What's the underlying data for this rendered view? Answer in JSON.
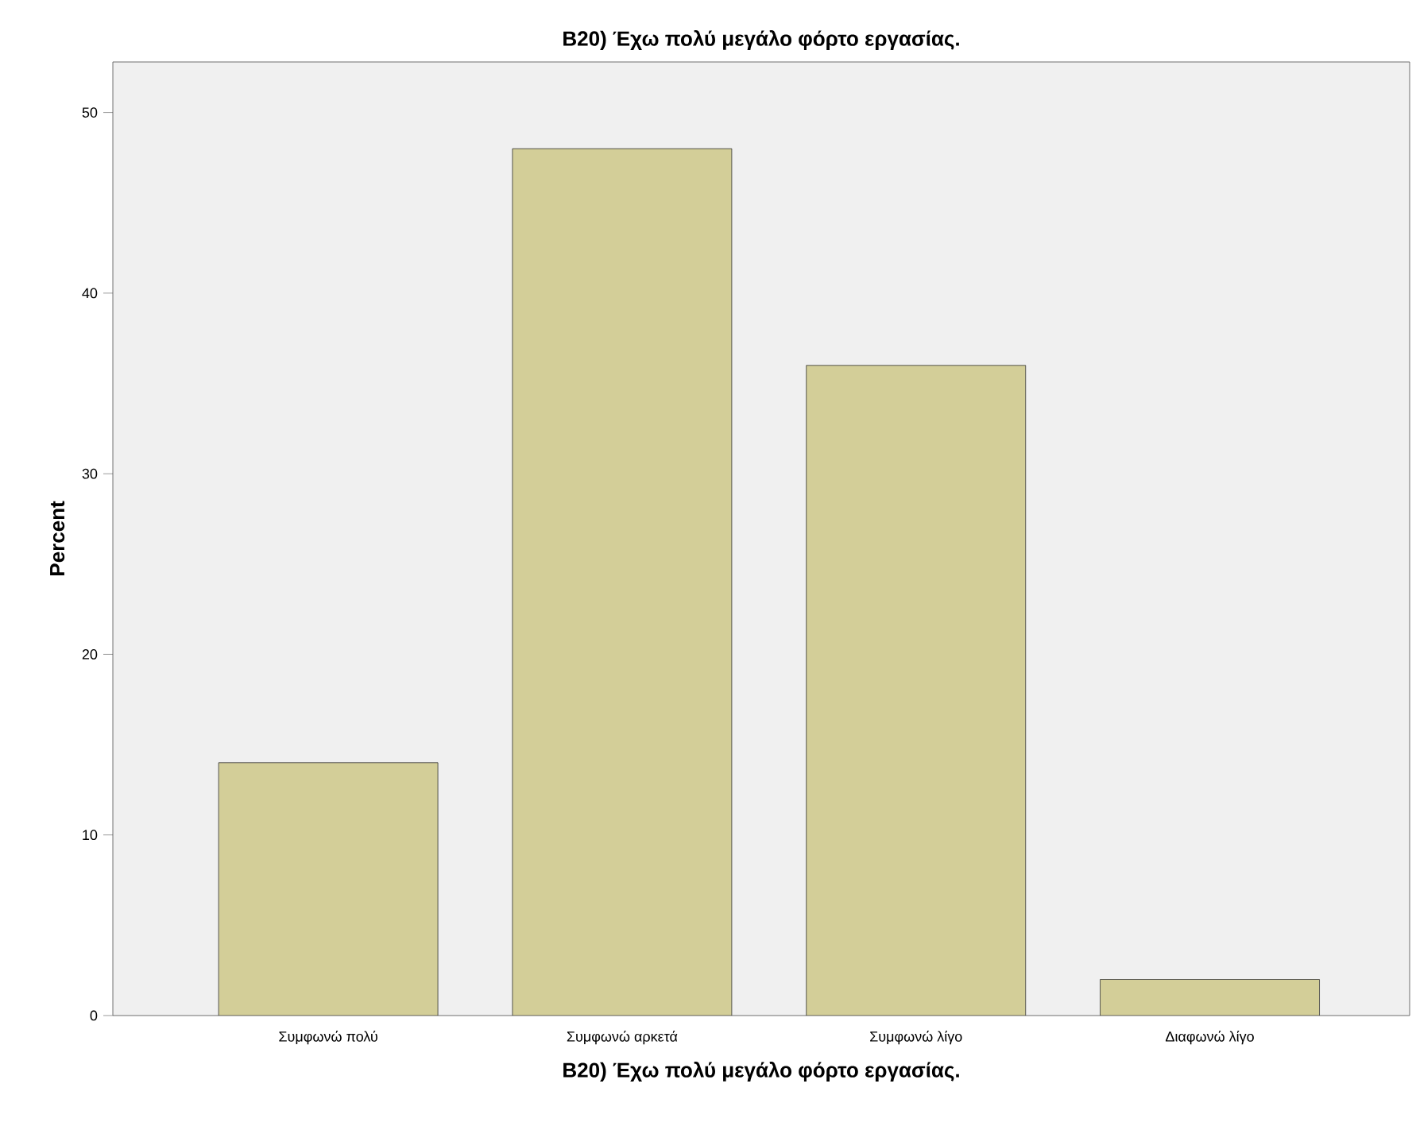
{
  "chart_data": {
    "type": "bar",
    "title": "B20) Έχω πολύ μεγάλο φόρτο εργασίας.",
    "xlabel": "B20) Έχω πολύ μεγάλο φόρτο εργασίας.",
    "ylabel": "Percent",
    "categories": [
      "Συμφωνώ πολύ",
      "Συμφωνώ αρκετά",
      "Συμφωνώ λίγο",
      "Διαφωνώ λίγο"
    ],
    "values": [
      14,
      48,
      36,
      2
    ],
    "color": "#d3ce98",
    "ylim": [
      0,
      52.8
    ],
    "yticks": [
      0,
      10,
      20,
      30,
      40,
      50
    ],
    "grid": false
  }
}
